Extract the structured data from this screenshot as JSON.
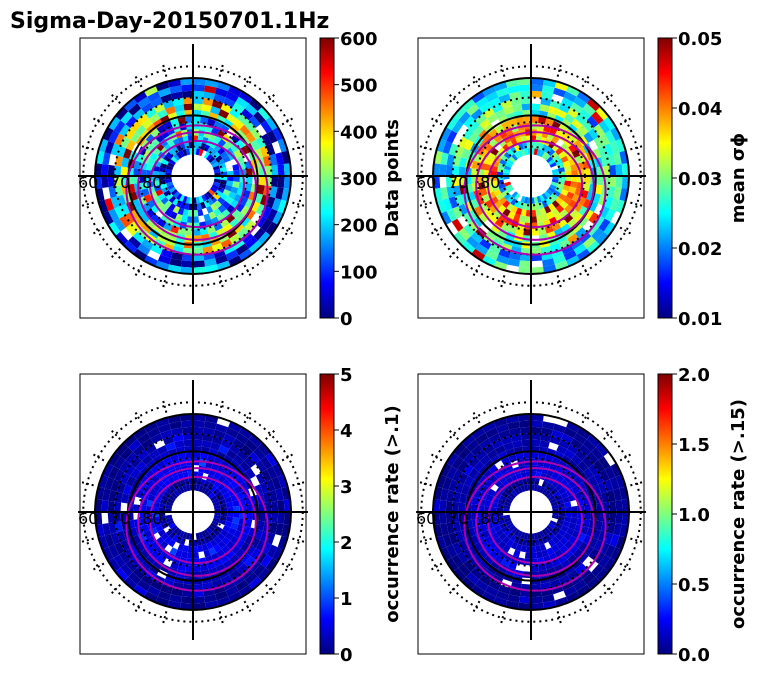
{
  "figure": {
    "title": "Sigma-Day-20150701.1Hz"
  },
  "colors": {
    "jet": [
      "#00007f",
      "#0000ff",
      "#007fff",
      "#00ffff",
      "#7fff7f",
      "#ffff00",
      "#ff7f00",
      "#ff0000",
      "#7f0000"
    ],
    "contour": "#b000b0",
    "grid": "#000000"
  },
  "chart_data": [
    {
      "type": "heatmap",
      "projection": "polar",
      "panel": "data-points",
      "colorbar": {
        "label": "Data points",
        "range": [
          0,
          600
        ],
        "ticks": [
          "0",
          "100",
          "200",
          "300",
          "400",
          "500",
          "600"
        ]
      },
      "latitude_labels": [
        "60",
        "70",
        "80"
      ],
      "pattern": {
        "base": 0.15,
        "amp": 0.85,
        "rings": [
          {
            "r0": 0.82,
            "r1": 1.0,
            "v": 0.15
          },
          {
            "r0": 0.6,
            "r1": 0.82,
            "v": 0.55
          },
          {
            "r0": 0.38,
            "r1": 0.6,
            "v": 0.3
          }
        ]
      }
    },
    {
      "type": "heatmap",
      "projection": "polar",
      "panel": "mean-sigma-phi",
      "colorbar": {
        "label": "mean σϕ",
        "range": [
          0.01,
          0.05
        ],
        "ticks": [
          "0.01",
          "0.02",
          "0.03",
          "0.04",
          "0.05"
        ]
      },
      "latitude_labels": [
        "60",
        "70",
        "80"
      ],
      "pattern": {
        "base": 0.35,
        "amp": 0.6,
        "rings": [
          {
            "r0": 0.82,
            "r1": 1.0,
            "v": 0.35
          },
          {
            "r0": 0.6,
            "r1": 0.82,
            "v": 0.45
          },
          {
            "r0": 0.38,
            "r1": 0.6,
            "v": 0.7
          }
        ]
      }
    },
    {
      "type": "heatmap",
      "projection": "polar",
      "panel": "occurrence-rate-0.1",
      "colorbar": {
        "label": "occurrence rate (>.1)",
        "range": [
          0,
          5
        ],
        "ticks": [
          "0",
          "1",
          "2",
          "3",
          "4",
          "5"
        ]
      },
      "latitude_labels": [
        "60",
        "70",
        "80"
      ],
      "pattern": {
        "base": 0.03,
        "amp": 0.1,
        "rings": [
          {
            "r0": 0.82,
            "r1": 1.0,
            "v": 0.02
          },
          {
            "r0": 0.6,
            "r1": 0.82,
            "v": 0.05
          },
          {
            "r0": 0.38,
            "r1": 0.6,
            "v": 0.1
          }
        ]
      }
    },
    {
      "type": "heatmap",
      "projection": "polar",
      "panel": "occurrence-rate-0.15",
      "colorbar": {
        "label": "occurrence rate (>.15)",
        "range": [
          0.0,
          2.0
        ],
        "ticks": [
          "0.0",
          "0.5",
          "1.0",
          "1.5",
          "2.0"
        ]
      },
      "latitude_labels": [
        "60",
        "70",
        "80"
      ],
      "pattern": {
        "base": 0.03,
        "amp": 0.08,
        "rings": [
          {
            "r0": 0.82,
            "r1": 1.0,
            "v": 0.02
          },
          {
            "r0": 0.6,
            "r1": 0.82,
            "v": 0.04
          },
          {
            "r0": 0.38,
            "r1": 0.6,
            "v": 0.08
          }
        ]
      }
    }
  ]
}
